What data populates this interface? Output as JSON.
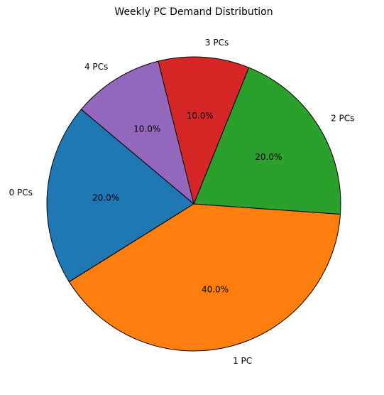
{
  "chart_data": {
    "type": "pie",
    "title": "Weekly PC Demand Distribution",
    "categories": [
      "0 PCs",
      "1 PC",
      "2 PCs",
      "3 PCs",
      "4 PCs"
    ],
    "values": [
      20.0,
      40.0,
      20.0,
      10.0,
      10.0
    ],
    "percent_labels": [
      "20.0%",
      "40.0%",
      "20.0%",
      "10.0%",
      "10.0%"
    ],
    "colors": [
      "#1f77b4",
      "#ff7f0e",
      "#2ca02c",
      "#d62728",
      "#9467bd"
    ],
    "start_angle_deg": 140,
    "direction": "counterclockwise",
    "edge_color": "#000000",
    "legend": "none",
    "grid": false
  }
}
